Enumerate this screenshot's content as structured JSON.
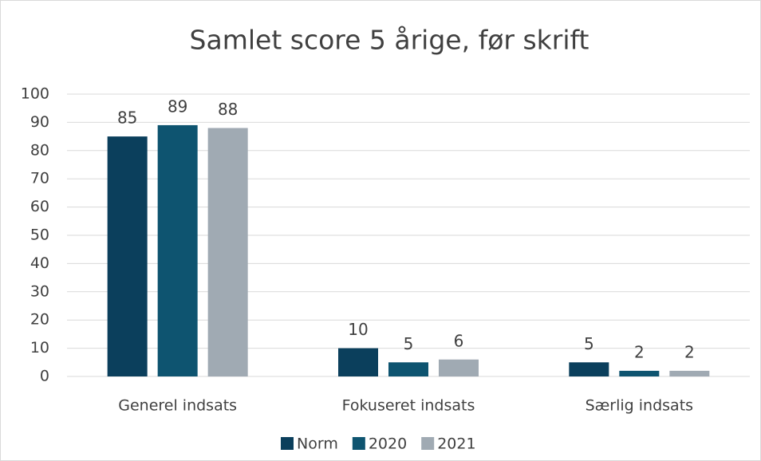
{
  "chart_data": {
    "type": "bar",
    "title": "Samlet score 5 årige, før skrift",
    "categories": [
      "Generel indsats",
      "Fokuseret indsats",
      "Særlig indsats"
    ],
    "series": [
      {
        "name": "Norm",
        "color": "#0b3f5c",
        "values": [
          85,
          10,
          5
        ]
      },
      {
        "name": "2020",
        "color": "#0e5470",
        "values": [
          89,
          5,
          2
        ]
      },
      {
        "name": "2021",
        "color": "#a0aab3",
        "values": [
          88,
          6,
          2
        ]
      }
    ],
    "ylim": [
      0,
      100
    ],
    "yticks": [
      0,
      10,
      20,
      30,
      40,
      50,
      60,
      70,
      80,
      90,
      100
    ],
    "grid": true,
    "legend": "bottom"
  }
}
